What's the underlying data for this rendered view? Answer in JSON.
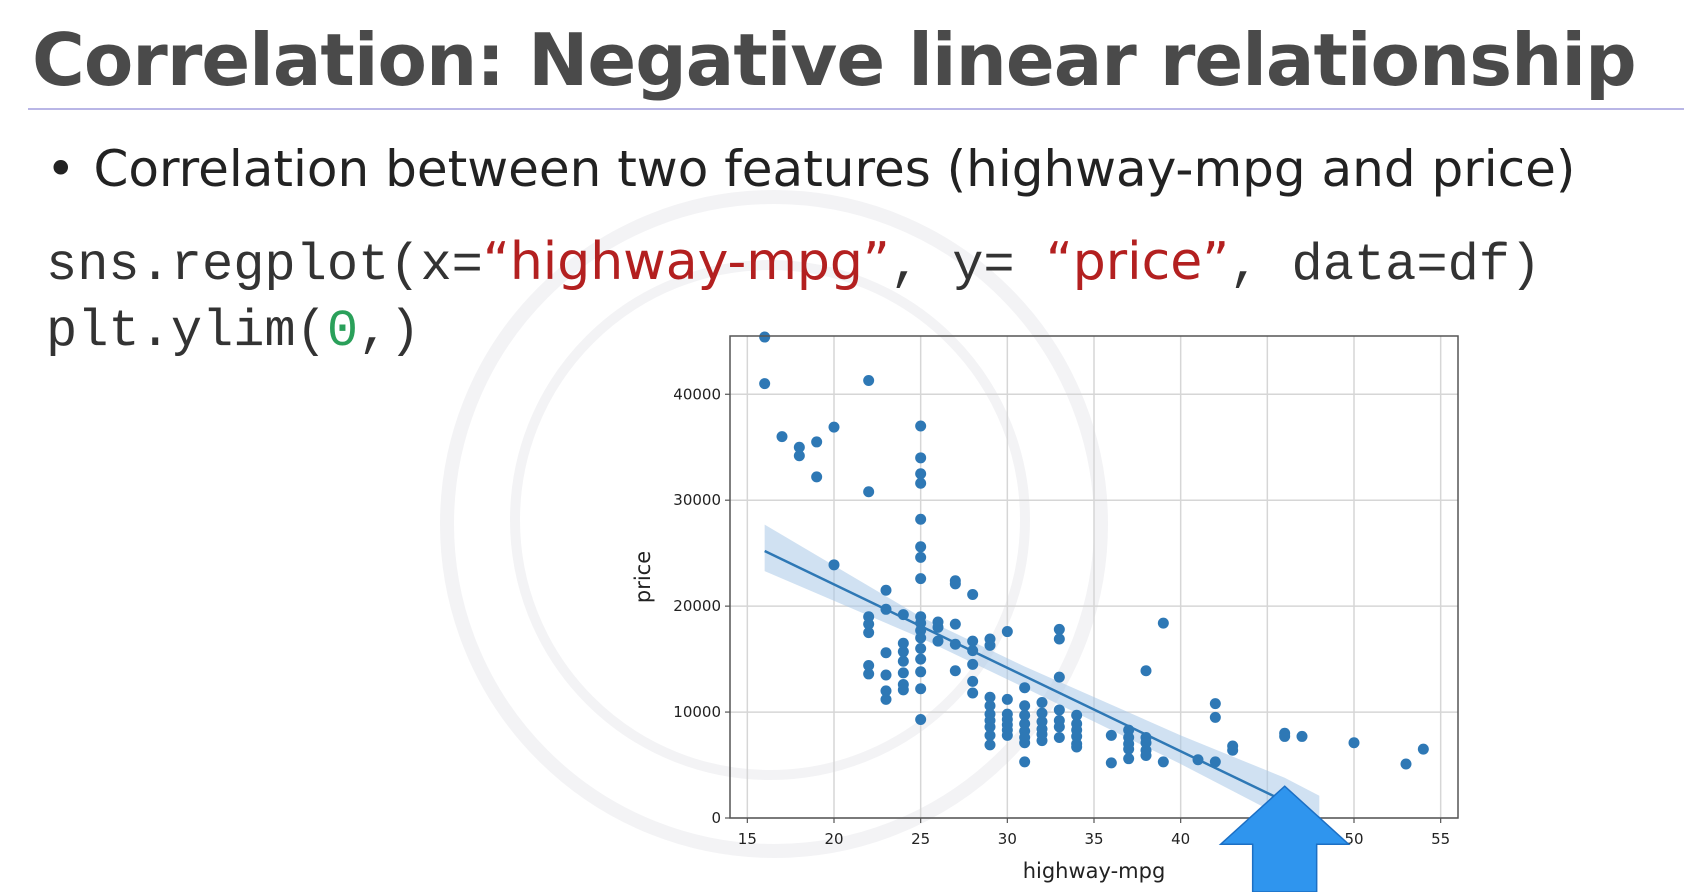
{
  "slide": {
    "title": "Correlation: Negative linear relationship",
    "bullet": "Correlation between two features (highway-mpg and price)"
  },
  "code": {
    "line1": {
      "prefix": "sns.regplot(x=",
      "x_arg": "“highway-mpg”",
      "mid": ", y= ",
      "y_arg": "“price”",
      "suffix": ", data=df)"
    },
    "line2": {
      "prefix": "plt.ylim(",
      "arg": "0",
      "suffix": ",)"
    }
  },
  "colors": {
    "title": "#4a4a4a",
    "string_literal": "#b32020",
    "number_literal": "#2aa05a",
    "points": "#2e78b5",
    "regression_line": "#2e78b5",
    "confidence_band": "#a9c8e8",
    "arrow": "#2f95ee"
  },
  "annotation": {
    "icon": "up-arrow-icon",
    "points_to_x": 46
  },
  "chart_data": {
    "type": "scatter",
    "xlabel": "highway-mpg",
    "ylabel": "price",
    "xlim": [
      14,
      56
    ],
    "ylim": [
      0,
      45500
    ],
    "xticks": [
      15,
      20,
      25,
      30,
      35,
      40,
      45,
      50,
      55
    ],
    "yticks": [
      0,
      10000,
      20000,
      30000,
      40000
    ],
    "grid": true,
    "points": [
      [
        16,
        45400
      ],
      [
        16,
        41000
      ],
      [
        22,
        41300
      ],
      [
        17,
        36000
      ],
      [
        18,
        35000
      ],
      [
        18,
        34200
      ],
      [
        19,
        35500
      ],
      [
        20,
        36900
      ],
      [
        19,
        32200
      ],
      [
        22,
        30800
      ],
      [
        20,
        23900
      ],
      [
        25,
        37000
      ],
      [
        25,
        34000
      ],
      [
        25,
        32500
      ],
      [
        25,
        31600
      ],
      [
        25,
        28200
      ],
      [
        25,
        25600
      ],
      [
        25,
        24600
      ],
      [
        25,
        22600
      ],
      [
        25,
        19000
      ],
      [
        25,
        18400
      ],
      [
        25,
        17700
      ],
      [
        25,
        17000
      ],
      [
        25,
        16000
      ],
      [
        25,
        15000
      ],
      [
        25,
        13800
      ],
      [
        25,
        12200
      ],
      [
        25,
        9300
      ],
      [
        22,
        19000
      ],
      [
        22,
        18300
      ],
      [
        22,
        17500
      ],
      [
        22,
        14400
      ],
      [
        22,
        13600
      ],
      [
        23,
        21500
      ],
      [
        23,
        19700
      ],
      [
        23,
        15600
      ],
      [
        23,
        13500
      ],
      [
        23,
        12000
      ],
      [
        23,
        11200
      ],
      [
        24,
        19200
      ],
      [
        24,
        16500
      ],
      [
        24,
        15700
      ],
      [
        24,
        14800
      ],
      [
        24,
        13700
      ],
      [
        24,
        12600
      ],
      [
        24,
        12100
      ],
      [
        26,
        18500
      ],
      [
        26,
        18000
      ],
      [
        26,
        16700
      ],
      [
        27,
        22400
      ],
      [
        27,
        22100
      ],
      [
        27,
        18300
      ],
      [
        27,
        16400
      ],
      [
        27,
        13900
      ],
      [
        28,
        21100
      ],
      [
        28,
        16700
      ],
      [
        28,
        15800
      ],
      [
        28,
        14500
      ],
      [
        28,
        12900
      ],
      [
        28,
        11800
      ],
      [
        29,
        16900
      ],
      [
        29,
        16300
      ],
      [
        29,
        11400
      ],
      [
        29,
        10600
      ],
      [
        29,
        9800
      ],
      [
        29,
        9200
      ],
      [
        29,
        8600
      ],
      [
        29,
        7800
      ],
      [
        29,
        6900
      ],
      [
        30,
        17600
      ],
      [
        30,
        11200
      ],
      [
        30,
        9800
      ],
      [
        30,
        9300
      ],
      [
        30,
        8800
      ],
      [
        30,
        8300
      ],
      [
        30,
        7800
      ],
      [
        31,
        12300
      ],
      [
        31,
        10600
      ],
      [
        31,
        9700
      ],
      [
        31,
        8900
      ],
      [
        31,
        8200
      ],
      [
        31,
        7600
      ],
      [
        31,
        7100
      ],
      [
        31,
        5300
      ],
      [
        32,
        10900
      ],
      [
        32,
        9900
      ],
      [
        32,
        9100
      ],
      [
        32,
        8400
      ],
      [
        32,
        7900
      ],
      [
        32,
        7300
      ],
      [
        33,
        17800
      ],
      [
        33,
        16900
      ],
      [
        33,
        13300
      ],
      [
        33,
        10200
      ],
      [
        33,
        9200
      ],
      [
        33,
        8600
      ],
      [
        33,
        7600
      ],
      [
        34,
        9700
      ],
      [
        34,
        8900
      ],
      [
        34,
        8300
      ],
      [
        34,
        7700
      ],
      [
        34,
        7000
      ],
      [
        34,
        6700
      ],
      [
        36,
        7800
      ],
      [
        36,
        5200
      ],
      [
        37,
        8300
      ],
      [
        37,
        7600
      ],
      [
        37,
        7000
      ],
      [
        37,
        6500
      ],
      [
        37,
        5600
      ],
      [
        38,
        13900
      ],
      [
        38,
        7600
      ],
      [
        38,
        7100
      ],
      [
        38,
        6400
      ],
      [
        38,
        5900
      ],
      [
        39,
        18400
      ],
      [
        39,
        5300
      ],
      [
        41,
        5500
      ],
      [
        42,
        10800
      ],
      [
        42,
        9500
      ],
      [
        42,
        5300
      ],
      [
        43,
        6800
      ],
      [
        43,
        6400
      ],
      [
        46,
        8000
      ],
      [
        46,
        7700
      ],
      [
        47,
        7700
      ],
      [
        50,
        7100
      ],
      [
        53,
        5100
      ],
      [
        54,
        6500
      ]
    ],
    "regression": {
      "x_start": 16,
      "x_end": 48,
      "y_start": 25200,
      "y_end": 0
    },
    "confidence_band": {
      "x": [
        16,
        25,
        31,
        40,
        46,
        48
      ],
      "lower": [
        23300,
        17000,
        12300,
        5100,
        -200,
        -2200
      ],
      "upper": [
        27700,
        19000,
        14300,
        7800,
        3800,
        2100
      ]
    }
  }
}
